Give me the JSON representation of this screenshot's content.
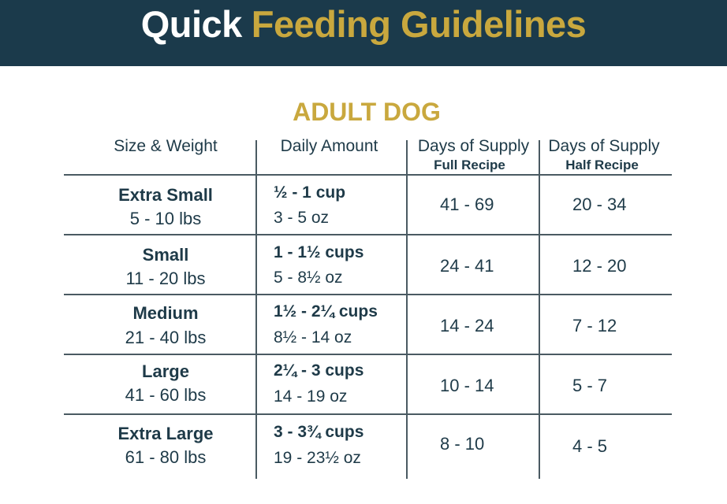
{
  "banner": {
    "title_part1": "Quick",
    "title_part2": "Feeding Guidelines"
  },
  "section_title": "ADULT DOG",
  "headers": {
    "size_weight": "Size & Weight",
    "daily_amount": "Daily Amount",
    "days_full": "Days of Supply",
    "days_full_sub": "Full Recipe",
    "days_half": "Days of Supply",
    "days_half_sub": "Half Recipe"
  },
  "rows": [
    {
      "size": "Extra Small",
      "weight": "5 - 10 lbs",
      "cups": "½ - 1 cup",
      "oz": "3 - 5 oz",
      "full": "41 - 69",
      "half": "20 - 34"
    },
    {
      "size": "Small",
      "weight": "11 - 20 lbs",
      "cups": "1 - 1½ cups",
      "oz": "5 - 8½ oz",
      "full": "24 - 41",
      "half": "12 - 20"
    },
    {
      "size": "Medium",
      "weight": "21 - 40 lbs",
      "cups": "1½ - 2¼ cups",
      "oz": "8½ - 14 oz",
      "full": "14 - 24",
      "half": "7 - 12"
    },
    {
      "size": "Large",
      "weight": "41 - 60 lbs",
      "cups": "2¼ - 3 cups",
      "oz": "14 - 19 oz",
      "full": "10 - 14",
      "half": "5 - 7"
    },
    {
      "size": "Extra Large",
      "weight": "61 - 80 lbs",
      "cups": "3 - 3¾ cups",
      "oz": "19 - 23½ oz",
      "full": "8 - 10",
      "half": "4 - 5"
    }
  ],
  "colors": {
    "banner": "#1b3a4b",
    "gold": "#c9a83e",
    "text": "#1e3a48"
  }
}
